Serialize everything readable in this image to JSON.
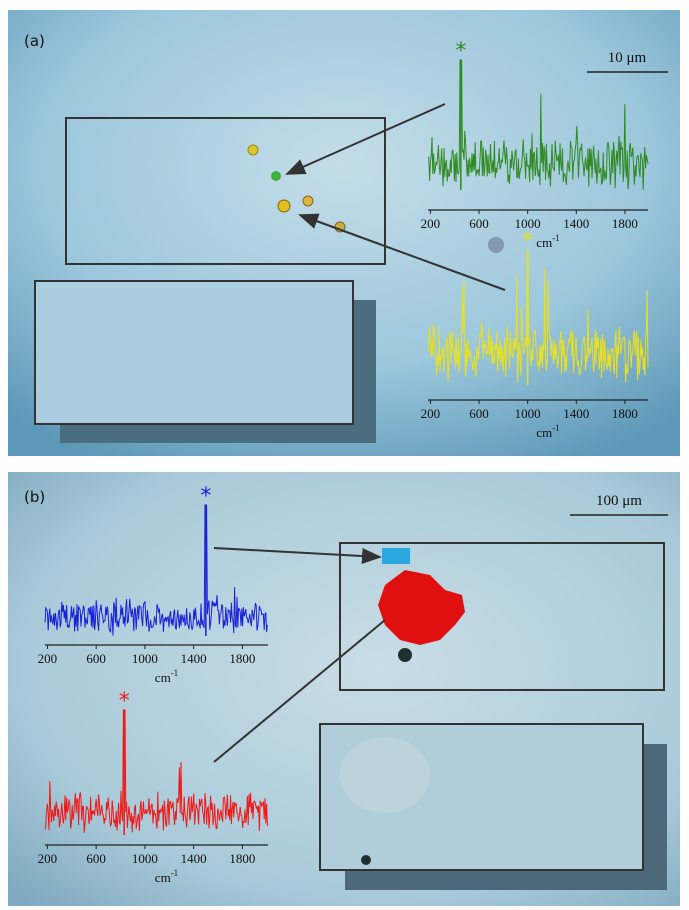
{
  "panels": [
    {
      "label": "(a)",
      "scale_bar": "10 μm",
      "spectra": [
        {
          "color": "#2f8a22",
          "marker": "*",
          "peak": 450,
          "xlim": [
            180,
            1990
          ],
          "xticks": [
            200,
            600,
            1000,
            1400,
            1800
          ],
          "unit": "cm",
          "unit_exp": "-1"
        },
        {
          "color": "#e8e020",
          "marker": "*",
          "peak": 1000,
          "xlim": [
            180,
            1990
          ],
          "xticks": [
            200,
            600,
            1000,
            1400,
            1800
          ],
          "unit": "cm",
          "unit_exp": "-1"
        }
      ]
    },
    {
      "label": "(b)",
      "scale_bar": "100 μm",
      "spectra": [
        {
          "color": "#1a22d8",
          "marker": "*",
          "peak": 1500,
          "xlim": [
            180,
            2010
          ],
          "xticks": [
            200,
            600,
            1000,
            1400,
            1800
          ],
          "unit": "cm",
          "unit_exp": "-1"
        },
        {
          "color": "#f01818",
          "marker": "*",
          "peak": 830,
          "xlim": [
            180,
            2010
          ],
          "xticks": [
            200,
            600,
            1000,
            1400,
            1800
          ],
          "unit": "cm",
          "unit_exp": "-1"
        }
      ]
    }
  ]
}
